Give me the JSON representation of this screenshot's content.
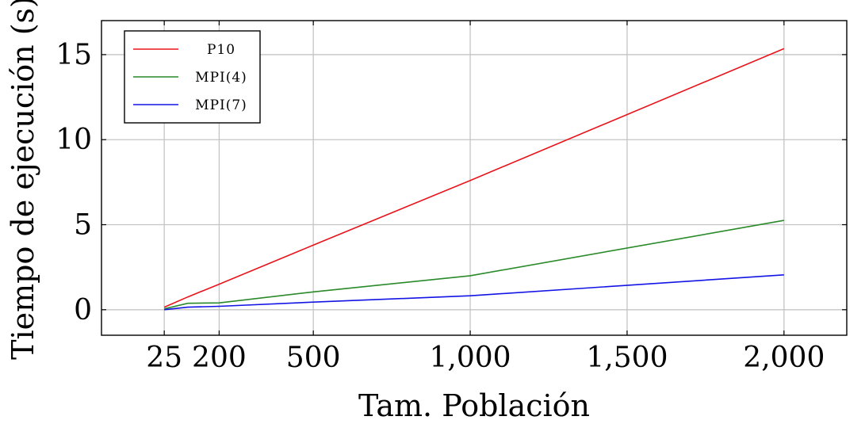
{
  "chart_data": {
    "type": "line",
    "title": "",
    "xlabel": "Tam. Población",
    "ylabel": "Tiempo de ejecución (s)",
    "x": [
      25,
      100,
      200,
      500,
      1000,
      2000
    ],
    "x_ticks": [
      25,
      200,
      500,
      1000,
      1500,
      2000
    ],
    "x_tick_labels": [
      "25",
      "200",
      "500",
      "1,000",
      "1,500",
      "2,000"
    ],
    "y_ticks": [
      0,
      5,
      10,
      15
    ],
    "y_tick_labels": [
      "0",
      "5",
      "10",
      "15"
    ],
    "xlim": [
      -175,
      2200
    ],
    "ylim": [
      -1.5,
      17
    ],
    "grid": true,
    "legend_position": "top-left",
    "series": [
      {
        "name": "P10",
        "color": "#e8141c",
        "values": [
          0.15,
          0.75,
          1.5,
          3.8,
          7.6,
          15.35
        ]
      },
      {
        "name": "MPI(4)",
        "color": "#2a8a2a",
        "values": [
          0.05,
          0.38,
          0.4,
          1.05,
          2.0,
          5.25
        ]
      },
      {
        "name": "MPI(7)",
        "color": "#1414e6",
        "values": [
          0.0,
          0.15,
          0.2,
          0.45,
          0.82,
          2.05
        ]
      }
    ]
  }
}
